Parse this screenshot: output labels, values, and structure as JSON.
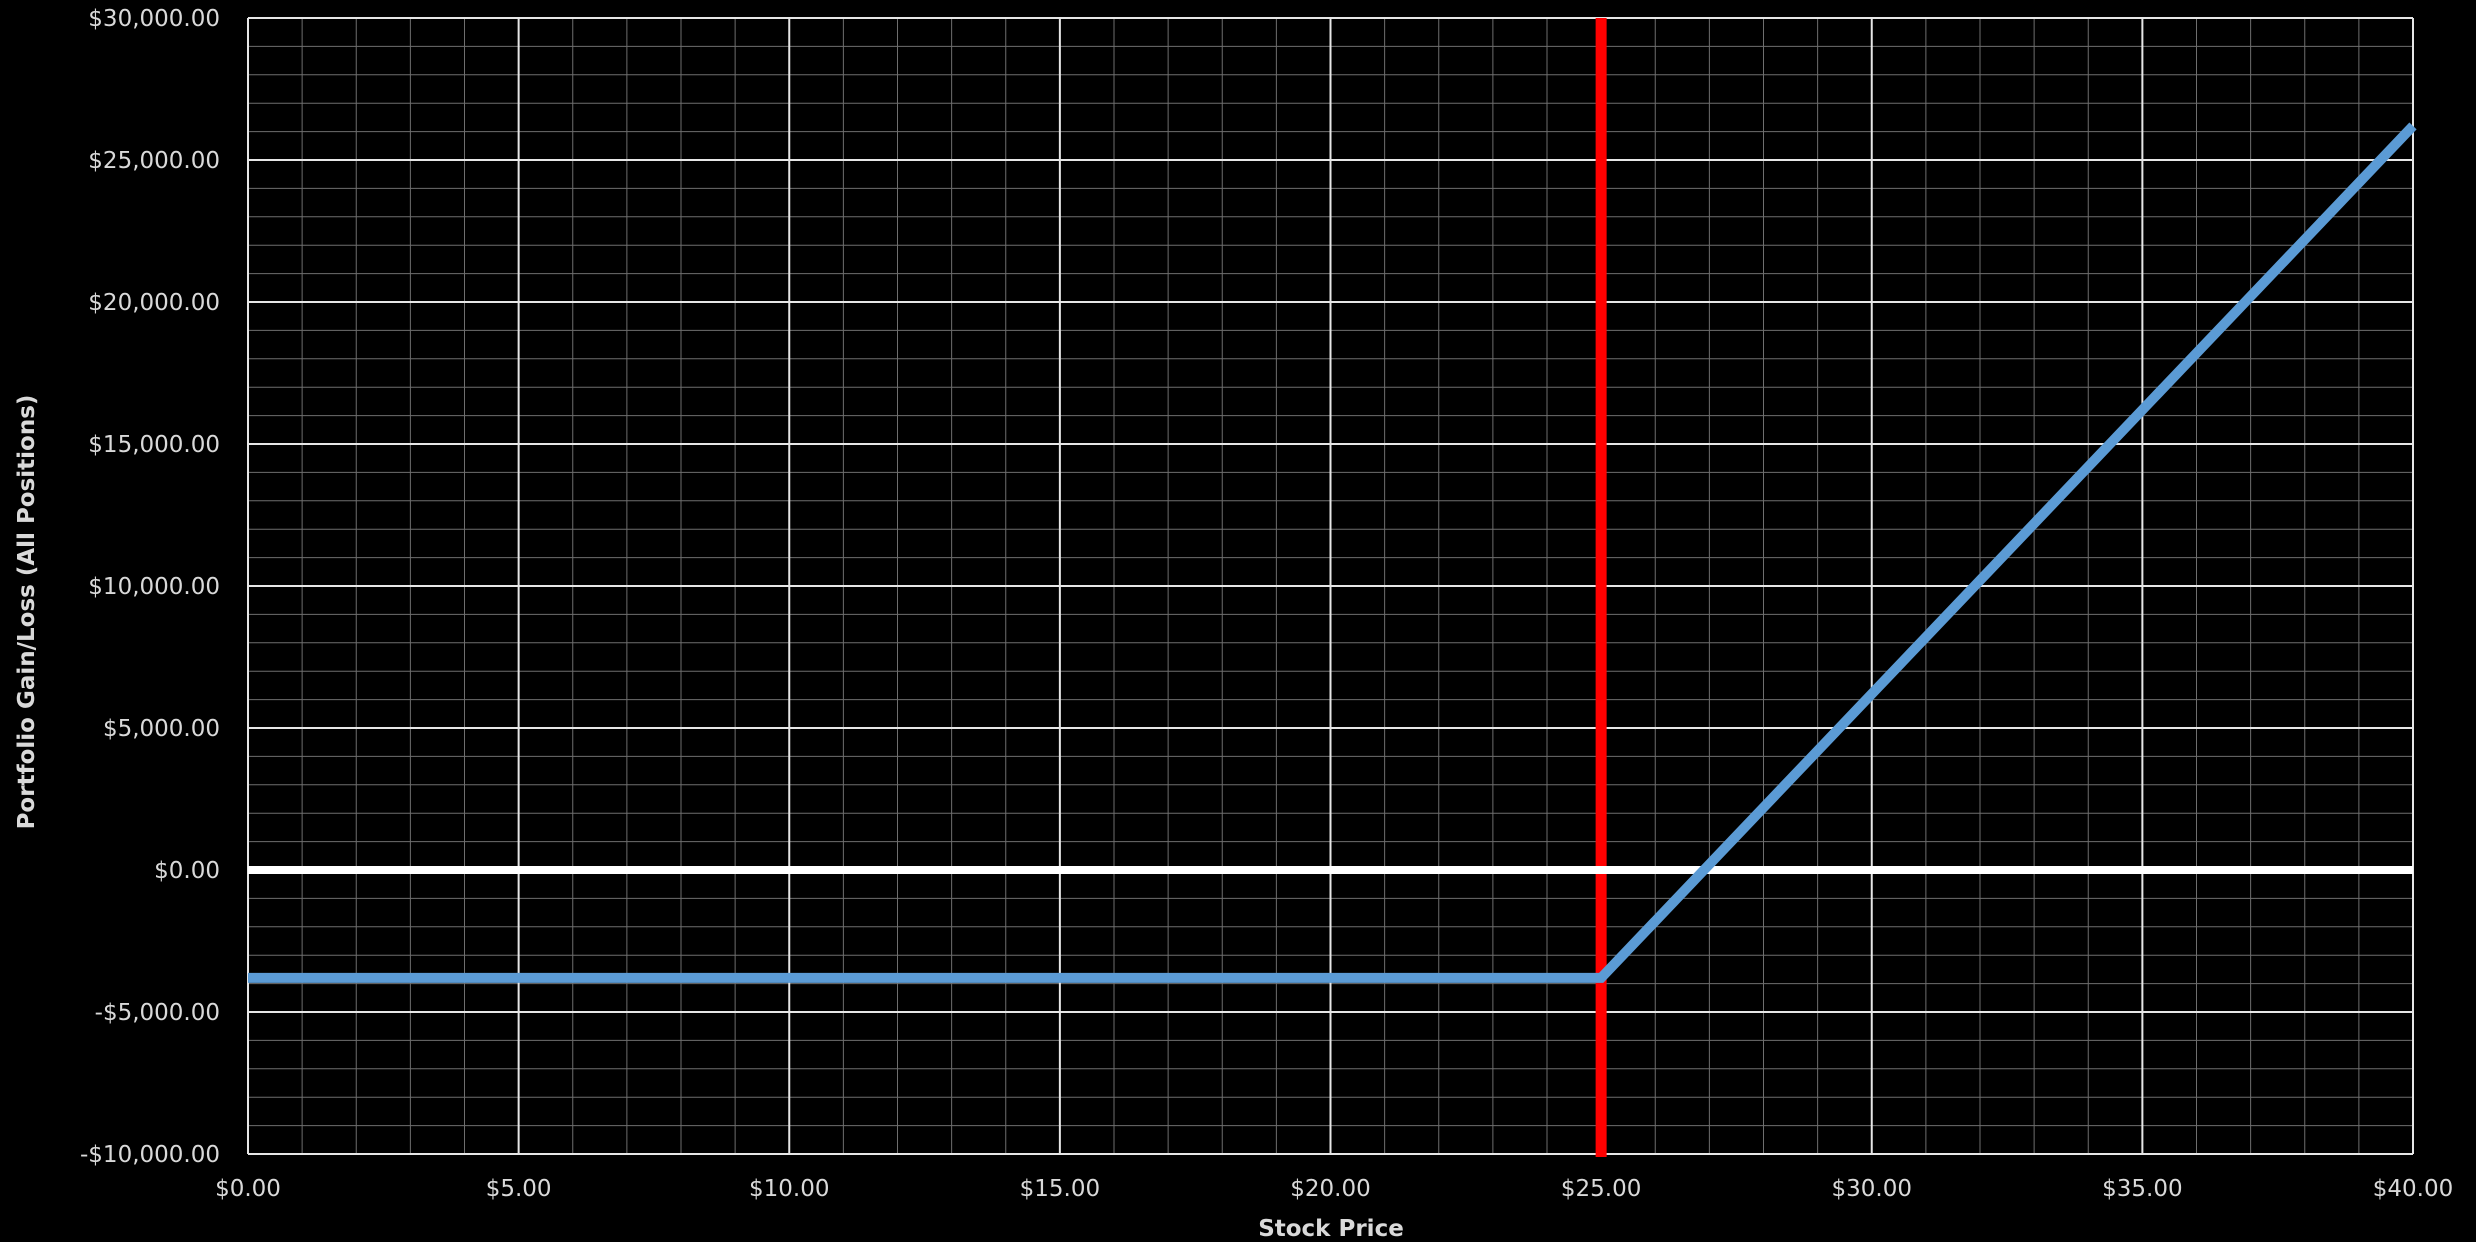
{
  "chart_data": {
    "type": "line",
    "title": "",
    "xlabel": "Stock Price",
    "ylabel": "Portfolio Gain/Loss  (All Positions)",
    "xlim": [
      0,
      40
    ],
    "ylim": [
      -10000,
      30000
    ],
    "x_ticks": [
      0,
      5,
      10,
      15,
      20,
      25,
      30,
      35,
      40
    ],
    "x_tick_labels": [
      "$0.00",
      "$5.00",
      "$10.00",
      "$15.00",
      "$20.00",
      "$25.00",
      "$30.00",
      "$35.00",
      "$40.00"
    ],
    "y_ticks": [
      -10000,
      -5000,
      0,
      5000,
      10000,
      15000,
      20000,
      25000,
      30000
    ],
    "y_tick_labels": [
      "-$10,000.00",
      "-$5,000.00",
      "$0.00",
      "$5,000.00",
      "$10,000.00",
      "$15,000.00",
      "$20,000.00",
      "$25,000.00",
      "$30,000.00"
    ],
    "grid": true,
    "minor_grid": true,
    "series": [
      {
        "color": "#5b9bd5",
        "x": [
          0,
          25,
          40
        ],
        "y": [
          -3800,
          -3800,
          26200
        ]
      }
    ],
    "reference_lines": [
      {
        "orientation": "vertical",
        "value": 25,
        "color": "#ff0000"
      },
      {
        "orientation": "horizontal",
        "value": 0,
        "color": "#ffffff"
      }
    ]
  }
}
